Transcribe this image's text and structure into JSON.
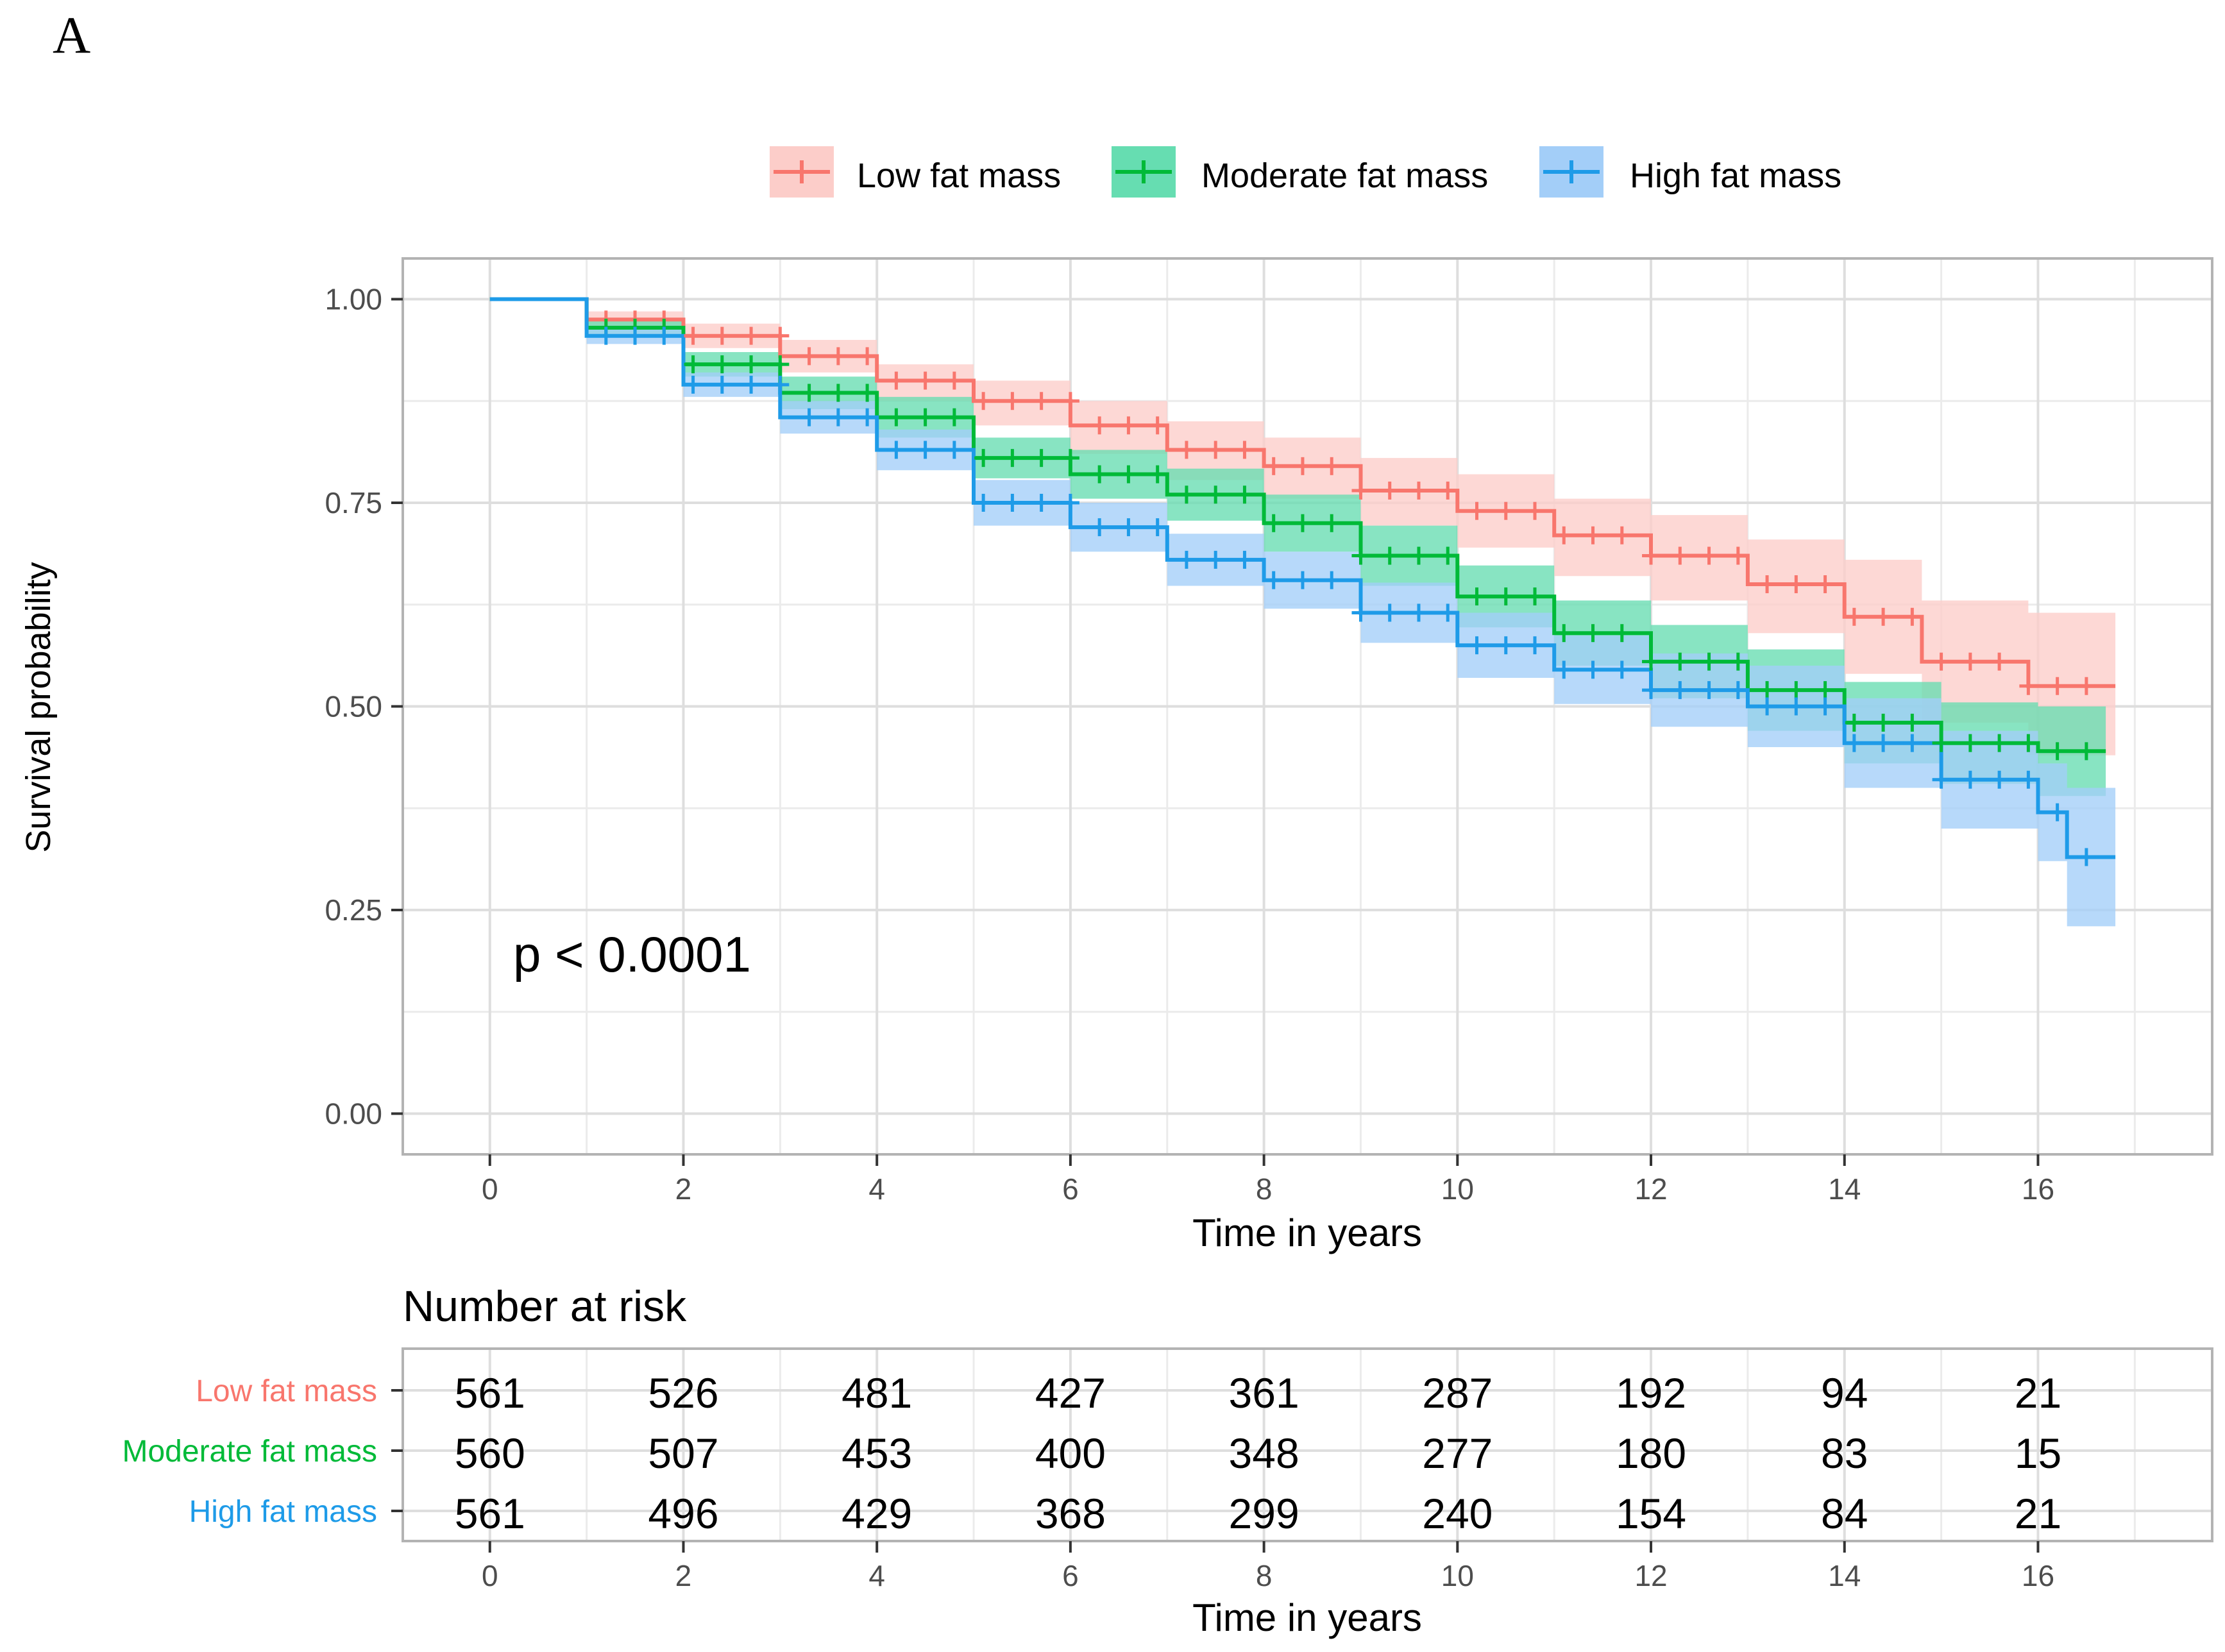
{
  "panel_label": "A",
  "chart_data": {
    "type": "line",
    "subtype": "kaplan-meier",
    "xlabel": "Time in years",
    "ylabel": "Survival probability",
    "xlim": [
      -0.9,
      17.8
    ],
    "ylim": [
      -0.05,
      1.05
    ],
    "x_ticks": [
      0,
      2,
      4,
      6,
      8,
      10,
      12,
      14,
      16
    ],
    "y_ticks": [
      0,
      0.25,
      0.5,
      0.75,
      1.0
    ],
    "y_tick_labels": [
      "0.00",
      "0.25",
      "0.50",
      "0.75",
      "1.00"
    ],
    "grid": true,
    "legend_position": "top",
    "annotation": "p < 0.0001",
    "series": [
      {
        "name": "Low fat mass",
        "color": "#F8766D",
        "band_color": "#FCCDC9",
        "x": [
          0,
          1,
          2,
          3,
          4,
          5,
          6,
          7,
          8,
          9,
          10,
          11,
          12,
          13,
          14,
          14.8,
          15.9,
          16.8
        ],
        "y": [
          1.0,
          0.975,
          0.955,
          0.93,
          0.9,
          0.875,
          0.845,
          0.815,
          0.795,
          0.765,
          0.74,
          0.71,
          0.685,
          0.65,
          0.61,
          0.555,
          0.525,
          0.525
        ],
        "lower": [
          1.0,
          0.965,
          0.94,
          0.91,
          0.875,
          0.845,
          0.81,
          0.778,
          0.755,
          0.722,
          0.695,
          0.66,
          0.63,
          0.59,
          0.54,
          0.48,
          0.44,
          0.44
        ],
        "upper": [
          1.0,
          0.985,
          0.97,
          0.95,
          0.92,
          0.9,
          0.875,
          0.85,
          0.83,
          0.805,
          0.785,
          0.755,
          0.735,
          0.705,
          0.68,
          0.63,
          0.615,
          0.615
        ]
      },
      {
        "name": "Moderate fat mass",
        "color": "#00BA38",
        "band_color": "#66DDB1",
        "x": [
          0,
          1,
          2,
          3,
          4,
          5,
          6,
          7,
          8,
          9,
          10,
          11,
          12,
          13,
          14,
          15,
          16,
          16.7
        ],
        "y": [
          1.0,
          0.965,
          0.92,
          0.885,
          0.855,
          0.805,
          0.785,
          0.76,
          0.725,
          0.685,
          0.635,
          0.59,
          0.555,
          0.52,
          0.48,
          0.455,
          0.445,
          0.445
        ],
        "lower": [
          1.0,
          0.955,
          0.905,
          0.865,
          0.83,
          0.78,
          0.755,
          0.728,
          0.69,
          0.648,
          0.597,
          0.55,
          0.51,
          0.47,
          0.43,
          0.405,
          0.39,
          0.39
        ],
        "upper": [
          1.0,
          0.975,
          0.935,
          0.905,
          0.88,
          0.83,
          0.815,
          0.792,
          0.76,
          0.722,
          0.673,
          0.63,
          0.6,
          0.57,
          0.53,
          0.505,
          0.5,
          0.5
        ]
      },
      {
        "name": "High fat mass",
        "color": "#1E9BE8",
        "band_color": "#A3CEF8",
        "x": [
          0,
          1,
          2,
          3,
          4,
          5,
          6,
          7,
          8,
          9,
          10,
          11,
          12,
          13,
          14,
          15,
          16,
          16.3,
          16.8
        ],
        "y": [
          1.0,
          0.955,
          0.895,
          0.855,
          0.815,
          0.75,
          0.72,
          0.68,
          0.655,
          0.615,
          0.575,
          0.545,
          0.52,
          0.5,
          0.455,
          0.41,
          0.37,
          0.315,
          0.315
        ],
        "lower": [
          1.0,
          0.945,
          0.88,
          0.835,
          0.79,
          0.722,
          0.69,
          0.648,
          0.62,
          0.578,
          0.535,
          0.503,
          0.475,
          0.45,
          0.4,
          0.35,
          0.31,
          0.23,
          0.23
        ],
        "upper": [
          1.0,
          0.965,
          0.91,
          0.875,
          0.84,
          0.778,
          0.75,
          0.712,
          0.69,
          0.652,
          0.615,
          0.587,
          0.565,
          0.55,
          0.51,
          0.47,
          0.43,
          0.4,
          0.4
        ]
      }
    ],
    "risk_table": {
      "title": "Number at risk",
      "xlabel": "Time in years",
      "times": [
        0,
        2,
        4,
        6,
        8,
        10,
        12,
        14,
        16
      ],
      "rows": [
        {
          "name": "Low fat mass",
          "color": "#F8766D",
          "values": [
            561,
            526,
            481,
            427,
            361,
            287,
            192,
            94,
            21
          ]
        },
        {
          "name": "Moderate fat mass",
          "color": "#00BA38",
          "values": [
            560,
            507,
            453,
            400,
            348,
            277,
            180,
            83,
            15
          ]
        },
        {
          "name": "High fat mass",
          "color": "#1E9BE8",
          "values": [
            561,
            496,
            429,
            368,
            299,
            240,
            154,
            84,
            21
          ]
        }
      ]
    }
  }
}
